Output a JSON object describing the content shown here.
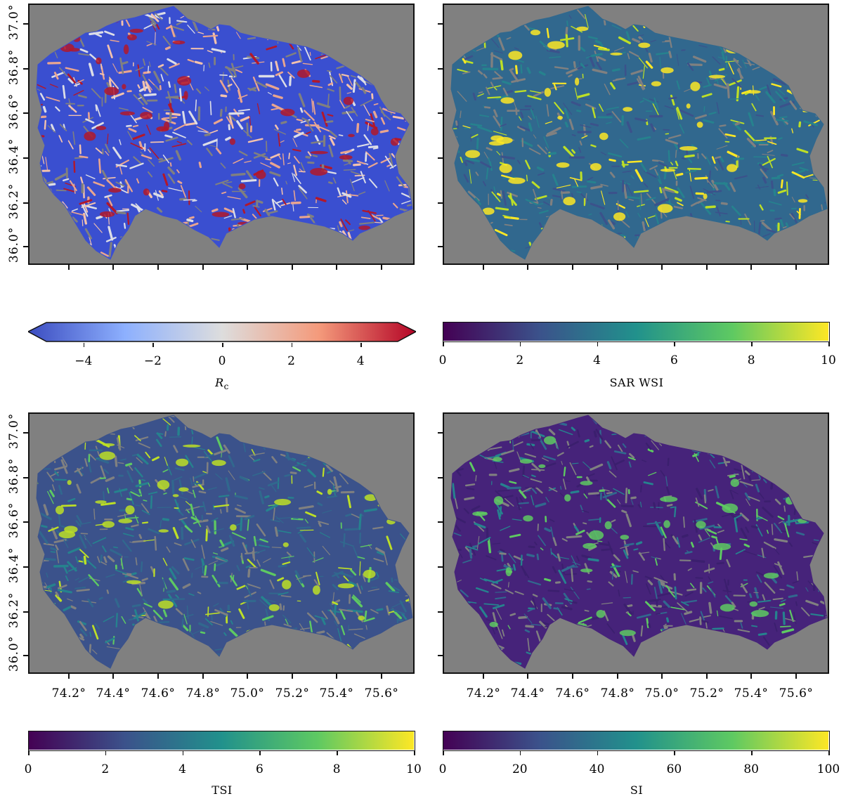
{
  "panels": [
    {
      "id": "rc",
      "lat_ticks": [
        "37.0°",
        "36.8°",
        "36.6°",
        "36.4°",
        "36.2°",
        "36.0°"
      ],
      "lon_ticks": [],
      "palette": [
        "#3a4fd0",
        "#e9a58f",
        "#dcdde7",
        "#f3c2ad",
        "#b2182b"
      ],
      "colorbar": {
        "label_main": "R",
        "label_sub": "c",
        "ticks": [
          "−4",
          "−2",
          "0",
          "2",
          "4"
        ],
        "tick_values": [
          -4,
          -2,
          0,
          2,
          4
        ],
        "range": [
          -5.5,
          5.5
        ],
        "extend": "both",
        "colormap": "coolwarm",
        "gradient": [
          "#3b4cc0",
          "#8db0fe",
          "#dddddd",
          "#f49a7b",
          "#b40426"
        ]
      }
    },
    {
      "id": "sar-wsi",
      "lat_ticks": [],
      "lon_ticks": [],
      "palette": [
        "#31688e",
        "#26828e",
        "#3b528b",
        "#bddf26",
        "#fde725"
      ],
      "colorbar": {
        "label": "SAR WSI",
        "ticks": [
          "0",
          "2",
          "4",
          "6",
          "8",
          "10"
        ],
        "tick_values": [
          0,
          2,
          4,
          6,
          8,
          10
        ],
        "range": [
          0,
          10
        ],
        "colormap": "viridis",
        "gradient": [
          "#440154",
          "#3b528b",
          "#21918c",
          "#5ec962",
          "#fde725"
        ]
      }
    },
    {
      "id": "tsi",
      "lat_ticks": [
        "37.0°",
        "36.8°",
        "36.6°",
        "36.4°",
        "36.2°",
        "36.0°"
      ],
      "lon_ticks": [
        "74.2°",
        "74.4°",
        "74.6°",
        "74.8°",
        "75.0°",
        "75.2°",
        "75.4°",
        "75.6°"
      ],
      "palette": [
        "#3b528b",
        "#31688e",
        "#26828e",
        "#5ec962",
        "#bddf26"
      ],
      "colorbar": {
        "label": "TSI",
        "ticks": [
          "0",
          "2",
          "4",
          "6",
          "8",
          "10"
        ],
        "tick_values": [
          0,
          2,
          4,
          6,
          8,
          10
        ],
        "range": [
          0,
          10
        ],
        "colormap": "viridis",
        "gradient": [
          "#440154",
          "#3b528b",
          "#21918c",
          "#5ec962",
          "#fde725"
        ]
      }
    },
    {
      "id": "si",
      "lat_ticks": [],
      "lon_ticks": [
        "74.2°",
        "74.4°",
        "74.6°",
        "74.8°",
        "75.0°",
        "75.2°",
        "75.4°",
        "75.6°"
      ],
      "palette": [
        "#46237a",
        "#3b1f6e",
        "#31688e",
        "#26828e",
        "#5ec962"
      ],
      "colorbar": {
        "label": "SI",
        "ticks": [
          "0",
          "20",
          "40",
          "60",
          "80",
          "100"
        ],
        "tick_values": [
          0,
          20,
          40,
          60,
          80,
          100
        ],
        "range": [
          0,
          100
        ],
        "colormap": "viridis",
        "gradient": [
          "#440154",
          "#3b528b",
          "#21918c",
          "#5ec962",
          "#fde725"
        ]
      }
    }
  ],
  "background_color": "#808080"
}
